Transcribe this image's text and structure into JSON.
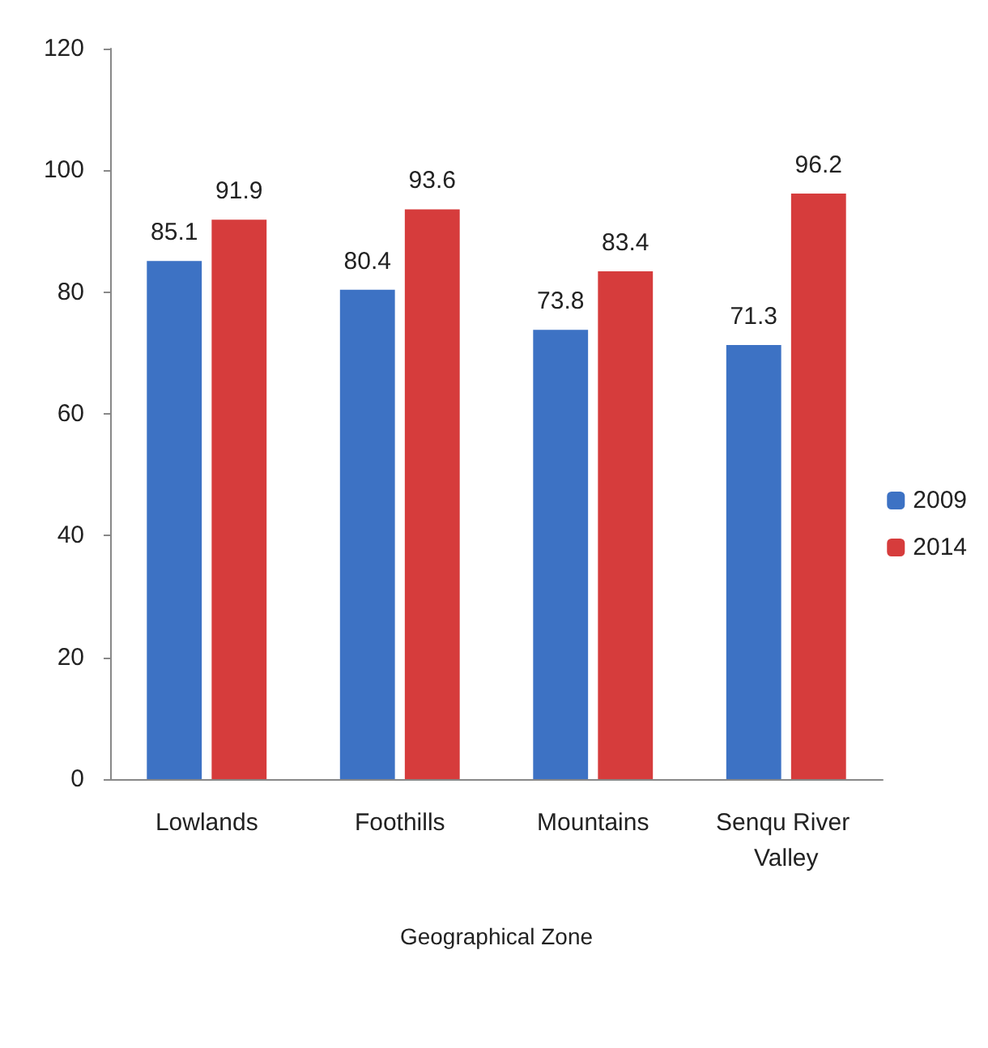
{
  "chart_data": {
    "type": "bar",
    "xlabel": "Geographical Zone",
    "categories": [
      "Lowlands",
      "Foothills",
      "Mountains",
      "Senqu River Valley"
    ],
    "series": [
      {
        "name": "2009",
        "color": "#3d72c4",
        "values": [
          85.1,
          80.4,
          73.8,
          71.3
        ]
      },
      {
        "name": "2014",
        "color": "#d63c3c",
        "values": [
          91.9,
          93.6,
          83.4,
          96.2
        ]
      }
    ],
    "ylim": [
      0,
      120
    ],
    "yticks": [
      0,
      20,
      40,
      60,
      80,
      100,
      120
    ],
    "grid": false,
    "legend": "right",
    "data_labels": true
  }
}
